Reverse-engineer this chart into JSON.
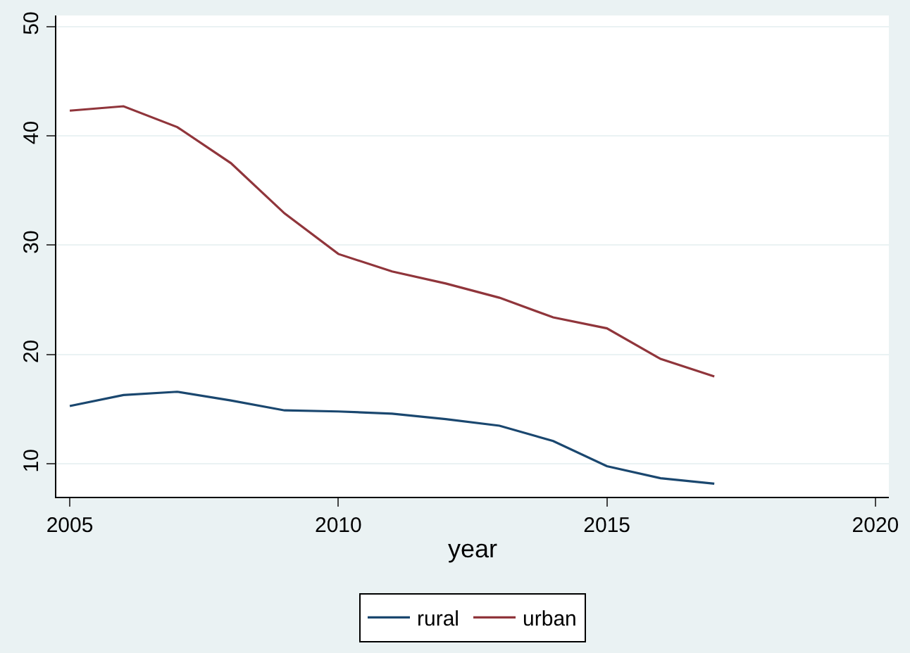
{
  "chart_data": {
    "type": "line",
    "xlabel": "year",
    "x": [
      2005,
      2006,
      2007,
      2008,
      2009,
      2010,
      2011,
      2012,
      2013,
      2014,
      2015,
      2016,
      2017
    ],
    "series": [
      {
        "name": "rural",
        "color": "#1a476f",
        "values": [
          15.3,
          16.3,
          16.6,
          15.8,
          14.9,
          14.8,
          14.6,
          14.1,
          13.5,
          12.1,
          9.8,
          8.7,
          8.2
        ]
      },
      {
        "name": "urban",
        "color": "#90353b",
        "values": [
          42.3,
          42.7,
          40.8,
          37.5,
          32.9,
          29.2,
          27.6,
          26.5,
          25.2,
          23.4,
          22.4,
          19.6,
          18.0
        ]
      }
    ],
    "xlim": [
      2004.75,
      2020.25
    ],
    "xticks": [
      2005,
      2010,
      2015,
      2020
    ],
    "ylim": [
      7,
      51
    ],
    "yticks": [
      10,
      20,
      30,
      40,
      50
    ],
    "grid": "y",
    "legend": "bottom",
    "marker": "none",
    "line_style": "solid"
  }
}
